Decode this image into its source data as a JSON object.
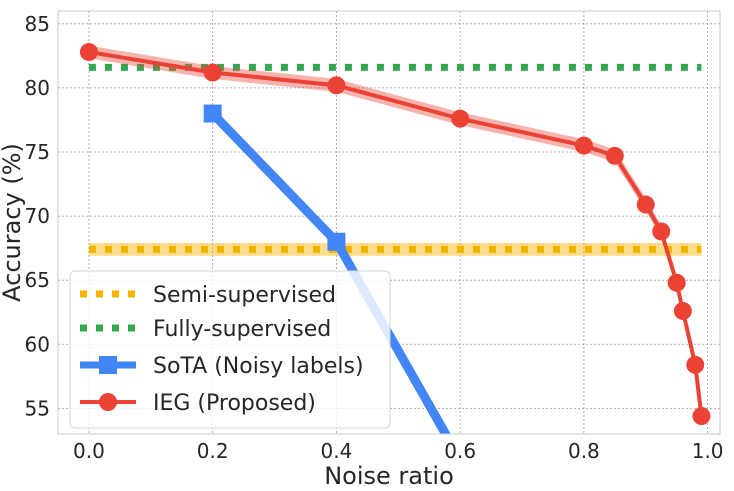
{
  "chart_data": {
    "type": "line",
    "xlabel": "Noise ratio",
    "ylabel": "Accuracy (%)",
    "xlim": [
      -0.05,
      1.02
    ],
    "ylim": [
      53,
      86
    ],
    "x_ticks": [
      0.0,
      0.2,
      0.4,
      0.6,
      0.8,
      1.0
    ],
    "x_tick_labels": [
      "0.0",
      "0.2",
      "0.4",
      "0.6",
      "0.8",
      "1.0"
    ],
    "y_ticks": [
      55,
      60,
      65,
      70,
      75,
      80,
      85
    ],
    "y_tick_labels": [
      "55",
      "60",
      "65",
      "70",
      "75",
      "80",
      "85"
    ],
    "grid": true,
    "legend_position": "lower-left",
    "series": [
      {
        "name": "Semi-supervised",
        "style": "dotted-hline",
        "color": "#f4b400",
        "x": [
          0.0,
          0.99
        ],
        "y": [
          67.4,
          67.4
        ],
        "band": [
          66.9,
          67.9
        ]
      },
      {
        "name": "Fully-supervised",
        "style": "dotted-hline",
        "color": "#34a853",
        "x": [
          0.0,
          0.99
        ],
        "y": [
          81.6,
          81.6
        ]
      },
      {
        "name": "SoTA (Noisy labels)",
        "style": "line-square",
        "color": "#4285f4",
        "x": [
          0.2,
          0.4,
          0.6
        ],
        "y": [
          78.0,
          68.0,
          51.0
        ]
      },
      {
        "name": "IEG (Proposed)",
        "style": "line-circle",
        "color": "#ea4335",
        "x": [
          0.0,
          0.2,
          0.4,
          0.6,
          0.8,
          0.85,
          0.9,
          0.925,
          0.95,
          0.96,
          0.98,
          0.99
        ],
        "y": [
          82.8,
          81.2,
          80.2,
          77.6,
          75.5,
          74.7,
          70.9,
          68.8,
          64.8,
          62.6,
          58.4,
          54.4
        ],
        "band_half_width": 0.5
      }
    ]
  }
}
